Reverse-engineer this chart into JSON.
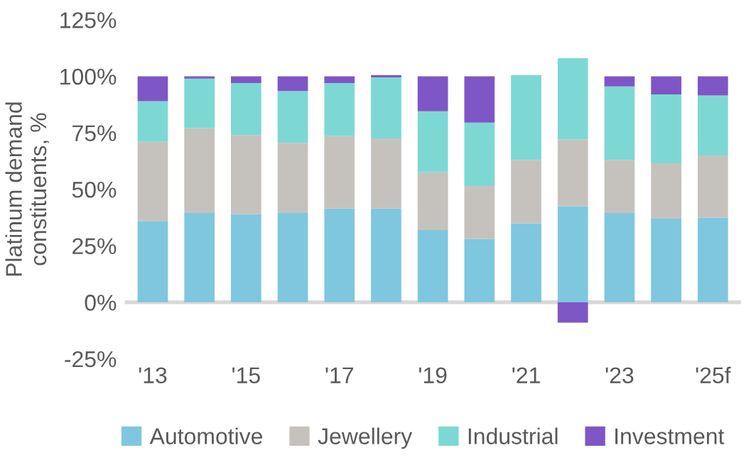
{
  "chart_data": {
    "type": "bar",
    "stacked": true,
    "ylabel": "Platinum demand\nconstituents, %",
    "categories": [
      "'13",
      null,
      "'15",
      null,
      "'17",
      null,
      "'19",
      null,
      "'21",
      null,
      "'23",
      null,
      "'25f"
    ],
    "series": [
      {
        "name": "Automotive",
        "color": "#7fc7de",
        "values": [
          36,
          39.5,
          39,
          39.5,
          41.5,
          41.5,
          32,
          28,
          35,
          42.5,
          39.5,
          37,
          37.5
        ]
      },
      {
        "name": "Jewellery",
        "color": "#c5c2bd",
        "values": [
          35,
          37.5,
          35,
          31,
          32,
          31,
          25.5,
          23.5,
          28,
          29.5,
          23.5,
          24.5,
          27.5
        ]
      },
      {
        "name": "Industrial",
        "color": "#7dd8d4",
        "values": [
          18,
          22,
          23,
          23,
          23.5,
          27,
          27,
          28,
          37.5,
          36,
          32.5,
          30.5,
          26.5
        ]
      },
      {
        "name": "Investment",
        "color": "#7f56c5",
        "values": [
          11,
          1,
          3,
          6.5,
          3,
          1,
          15.5,
          20.5,
          0,
          -9,
          4.5,
          8,
          8.5
        ]
      }
    ],
    "ylim": [
      -25,
      125
    ],
    "yticks": [
      {
        "value": -25,
        "label": "-25%"
      },
      {
        "value": 0,
        "label": "0%"
      },
      {
        "value": 25,
        "label": "25%"
      },
      {
        "value": 50,
        "label": "50%"
      },
      {
        "value": 75,
        "label": "75%"
      },
      {
        "value": 100,
        "label": "100%"
      },
      {
        "value": 125,
        "label": "125%"
      }
    ],
    "legend": "bottom"
  }
}
